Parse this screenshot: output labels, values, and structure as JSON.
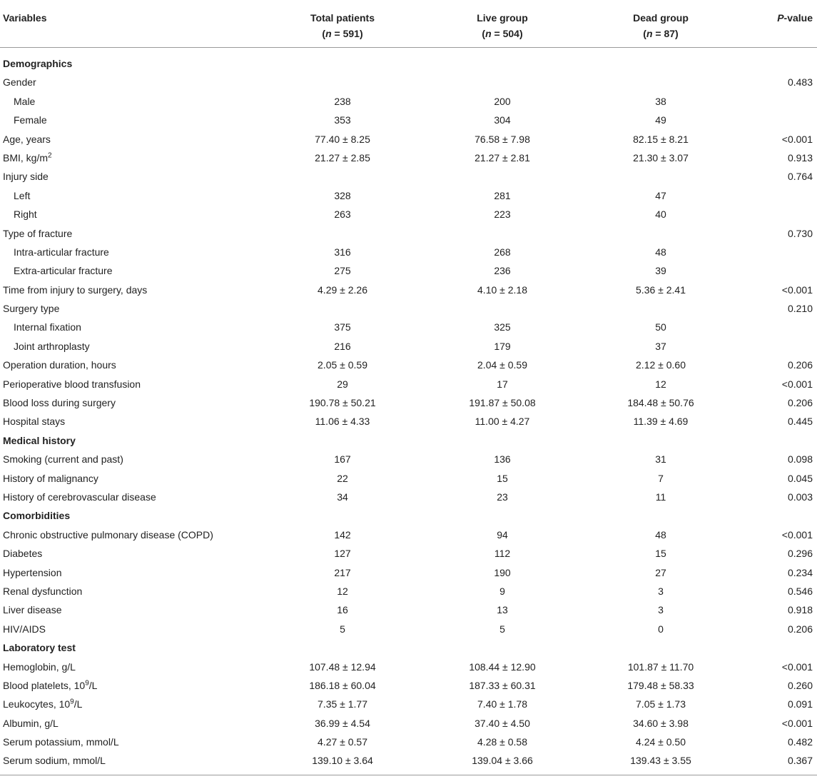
{
  "header": {
    "variables": "Variables",
    "total": {
      "line1": "Total patients",
      "n_prefix": "(",
      "n_var": "n",
      "n_rest": " = 591)"
    },
    "live": {
      "line1": "Live group",
      "n_prefix": "(",
      "n_var": "n",
      "n_rest": " = 504)"
    },
    "dead": {
      "line1": "Dead group",
      "n_prefix": "(",
      "n_var": "n",
      "n_rest": " = 87)"
    },
    "p_italic": "P",
    "p_rest": "-value"
  },
  "rows": [
    {
      "type": "section",
      "label": "Demographics"
    },
    {
      "type": "row",
      "label": "Gender",
      "p": "0.483"
    },
    {
      "type": "sub",
      "label": "Male",
      "total": "238",
      "live": "200",
      "dead": "38"
    },
    {
      "type": "sub",
      "label": "Female",
      "total": "353",
      "live": "304",
      "dead": "49"
    },
    {
      "type": "row",
      "label": "Age, years",
      "total": "77.40 ± 8.25",
      "live": "76.58 ± 7.98",
      "dead": "82.15 ± 8.21",
      "p": "<0.001"
    },
    {
      "type": "row",
      "label": "BMI, kg/m",
      "sup": "2",
      "total": "21.27 ± 2.85",
      "live": "21.27 ± 2.81",
      "dead": "21.30 ± 3.07",
      "p": "0.913"
    },
    {
      "type": "row",
      "label": "Injury side",
      "p": "0.764"
    },
    {
      "type": "sub",
      "label": "Left",
      "total": "328",
      "live": "281",
      "dead": "47"
    },
    {
      "type": "sub",
      "label": "Right",
      "total": "263",
      "live": "223",
      "dead": "40"
    },
    {
      "type": "row",
      "label": "Type of fracture",
      "p": "0.730"
    },
    {
      "type": "sub",
      "label": "Intra-articular fracture",
      "total": "316",
      "live": "268",
      "dead": "48"
    },
    {
      "type": "sub",
      "label": "Extra-articular fracture",
      "total": "275",
      "live": "236",
      "dead": "39"
    },
    {
      "type": "row",
      "label": "Time from injury to surgery, days",
      "total": "4.29 ± 2.26",
      "live": "4.10 ± 2.18",
      "dead": "5.36 ± 2.41",
      "p": "<0.001"
    },
    {
      "type": "row",
      "label": "Surgery type",
      "p": "0.210"
    },
    {
      "type": "sub",
      "label": "Internal fixation",
      "total": "375",
      "live": "325",
      "dead": "50"
    },
    {
      "type": "sub",
      "label": "Joint arthroplasty",
      "total": "216",
      "live": "179",
      "dead": "37"
    },
    {
      "type": "row",
      "label": "Operation duration, hours",
      "total": "2.05 ± 0.59",
      "live": "2.04 ± 0.59",
      "dead": "2.12 ± 0.60",
      "p": "0.206"
    },
    {
      "type": "row",
      "label": "Perioperative blood transfusion",
      "total": "29",
      "live": "17",
      "dead": "12",
      "p": "<0.001"
    },
    {
      "type": "row",
      "label": "Blood loss during surgery",
      "total": "190.78 ± 50.21",
      "live": "191.87 ± 50.08",
      "dead": "184.48 ± 50.76",
      "p": "0.206"
    },
    {
      "type": "row",
      "label": "Hospital stays",
      "total": "11.06 ± 4.33",
      "live": "11.00 ± 4.27",
      "dead": "11.39 ± 4.69",
      "p": "0.445"
    },
    {
      "type": "section",
      "label": "Medical history"
    },
    {
      "type": "row",
      "label": "Smoking (current and past)",
      "total": "167",
      "live": "136",
      "dead": "31",
      "p": "0.098"
    },
    {
      "type": "row",
      "label": "History of malignancy",
      "total": "22",
      "live": "15",
      "dead": "7",
      "p": "0.045"
    },
    {
      "type": "row",
      "label": "History of cerebrovascular disease",
      "total": "34",
      "live": "23",
      "dead": "11",
      "p": "0.003"
    },
    {
      "type": "section",
      "label": "Comorbidities"
    },
    {
      "type": "row",
      "label": "Chronic obstructive pulmonary disease (COPD)",
      "total": "142",
      "live": "94",
      "dead": "48",
      "p": "<0.001"
    },
    {
      "type": "row",
      "label": "Diabetes",
      "total": "127",
      "live": "112",
      "dead": "15",
      "p": "0.296"
    },
    {
      "type": "row",
      "label": "Hypertension",
      "total": "217",
      "live": "190",
      "dead": "27",
      "p": "0.234"
    },
    {
      "type": "row",
      "label": "Renal dysfunction",
      "total": "12",
      "live": "9",
      "dead": "3",
      "p": "0.546"
    },
    {
      "type": "row",
      "label": "Liver disease",
      "total": "16",
      "live": "13",
      "dead": "3",
      "p": "0.918"
    },
    {
      "type": "row",
      "label": "HIV/AIDS",
      "total": "5",
      "live": "5",
      "dead": "0",
      "p": "0.206"
    },
    {
      "type": "section",
      "label": "Laboratory test"
    },
    {
      "type": "row",
      "label": "Hemoglobin, g/L",
      "total": "107.48 ± 12.94",
      "live": "108.44 ± 12.90",
      "dead": "101.87 ± 11.70",
      "p": "<0.001"
    },
    {
      "type": "row",
      "label": "Blood platelets, 10",
      "sup": "9",
      "suffix": "/L",
      "total": "186.18 ± 60.04",
      "live": "187.33 ± 60.31",
      "dead": "179.48 ± 58.33",
      "p": "0.260"
    },
    {
      "type": "row",
      "label": "Leukocytes, 10",
      "sup": "9",
      "suffix": "/L",
      "total": "7.35 ± 1.77",
      "live": "7.40 ± 1.78",
      "dead": "7.05 ± 1.73",
      "p": "0.091"
    },
    {
      "type": "row",
      "label": "Albumin, g/L",
      "total": "36.99 ± 4.54",
      "live": "37.40 ± 4.50",
      "dead": "34.60 ± 3.98",
      "p": "<0.001"
    },
    {
      "type": "row",
      "label": "Serum potassium, mmol/L",
      "total": "4.27 ± 0.57",
      "live": "4.28 ± 0.58",
      "dead": "4.24 ± 0.50",
      "p": "0.482"
    },
    {
      "type": "row",
      "label": "Serum sodium, mmol/L",
      "total": "139.10 ± 3.64",
      "live": "139.04 ± 3.66",
      "dead": "139.43 ± 3.55",
      "p": "0.367"
    }
  ]
}
